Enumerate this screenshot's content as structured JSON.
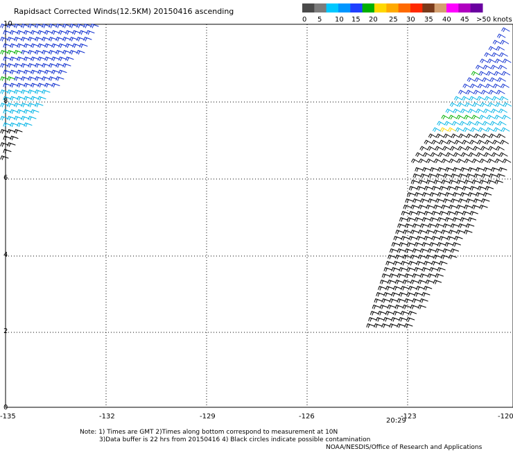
{
  "title": "Rapidsact Corrected Winds(12.5KM) 20150416 ascending",
  "legend": {
    "labels": [
      "0",
      "5",
      "10",
      "15",
      "20",
      "25",
      "30",
      "35",
      "40",
      "45",
      ">50 knots"
    ],
    "colors": [
      "#4a4a4a",
      "#7c7c7c",
      "#00c8ff",
      "#0096ff",
      "#2040ff",
      "#00b000",
      "#ffd800",
      "#ffaa00",
      "#ff6a00",
      "#ff2a00",
      "#7a3a1a",
      "#d4a070",
      "#ff00ff",
      "#b000c0",
      "#6a00a0"
    ]
  },
  "axes": {
    "x_ticks": [
      "-135",
      "-132",
      "-129",
      "-126",
      "-123",
      "-120"
    ],
    "y_ticks": [
      "10",
      "8",
      "6",
      "4",
      "2",
      "0"
    ],
    "time_label": "20:29",
    "time_color": "#990099"
  },
  "notes": {
    "line1": "Note: 1) Times are GMT 2)Times along bottom correspond to measurement at 10N",
    "line2": "3)Data buffer is 22 hrs from 20150416 4) Black circles indicate possible contamination",
    "credit": "NOAA/NESDIS/Office of Research and Applications"
  },
  "colors": {
    "low_wind": "#000000",
    "mid_wind": "#00b4e6",
    "high_wind": "#1030d0",
    "strong_wind": "#00b000",
    "peak_wind": "#ffd800"
  }
}
